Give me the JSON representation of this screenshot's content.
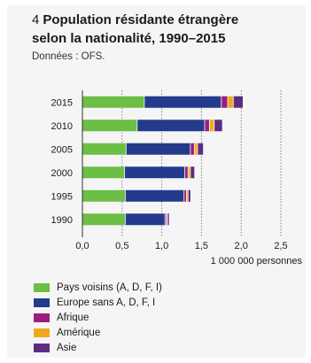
{
  "header": {
    "number": "4",
    "title_line1": "Population résidante étrangère",
    "title_line2": "selon la nationalité, 1990–2015",
    "source": "Données : OFS."
  },
  "chart_data": {
    "type": "bar",
    "orientation": "horizontal",
    "stacked": true,
    "categories": [
      "2015",
      "2010",
      "2005",
      "2000",
      "1995",
      "1990"
    ],
    "series": [
      {
        "name": "Pays voisins (A, D, F, I)",
        "color": "#6cbe45",
        "values": [
          0.78,
          0.69,
          0.55,
          0.53,
          0.54,
          0.54
        ]
      },
      {
        "name": "Europe sans A, D, F, I",
        "color": "#243a8c",
        "values": [
          0.97,
          0.85,
          0.81,
          0.76,
          0.74,
          0.5
        ]
      },
      {
        "name": "Afrique",
        "color": "#9c1d7c",
        "values": [
          0.08,
          0.06,
          0.05,
          0.04,
          0.03,
          0.02
        ]
      },
      {
        "name": "Amérique",
        "color": "#f2a81d",
        "values": [
          0.07,
          0.06,
          0.04,
          0.03,
          0.02,
          0.01
        ]
      },
      {
        "name": "Asie",
        "color": "#5b2d82",
        "values": [
          0.12,
          0.1,
          0.07,
          0.05,
          0.03,
          0.02
        ]
      }
    ],
    "xlim": [
      0,
      2.5
    ],
    "xticks": [
      "0,0",
      "0,5",
      "1,0",
      "1,5",
      "2,0",
      "2,5"
    ],
    "xtick_values": [
      0,
      0.5,
      1.0,
      1.5,
      2.0,
      2.5
    ],
    "xlabel": "1 000 000 personnes",
    "grid": "vertical dotted",
    "legend_placement": "bottom"
  }
}
